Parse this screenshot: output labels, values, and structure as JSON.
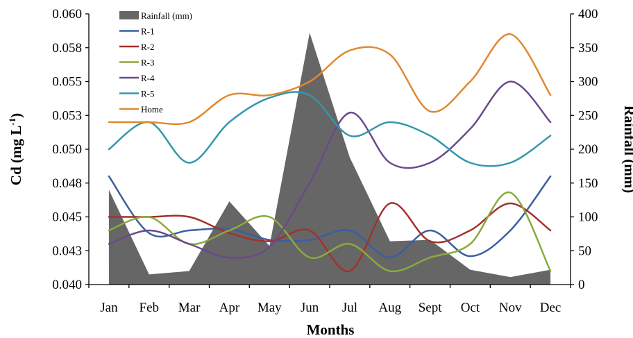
{
  "chart_data": {
    "type": "line",
    "x_label": "Months",
    "y_label_base": "Cd (mg  L",
    "y_label_sup": "-1",
    "y_label_close": ")",
    "y2_label": "Rainfall (mm)",
    "categories": [
      "Jan",
      "Feb",
      "Mar",
      "Apr",
      "May",
      "Jun",
      "Jul",
      "Aug",
      "Sept",
      "Oct",
      "Nov",
      "Dec"
    ],
    "ylim": [
      0.04,
      0.06
    ],
    "y_ticks": [
      "0.040",
      "0.043",
      "0.045",
      "0.048",
      "0.050",
      "0.053",
      "0.055",
      "0.058",
      "0.060"
    ],
    "y2lim": [
      0,
      400
    ],
    "y2_ticks": [
      "0",
      "50",
      "100",
      "150",
      "200",
      "250",
      "300",
      "350",
      "400"
    ],
    "legend_position": "top-left",
    "area_series": {
      "name": "Rainfall (mm)",
      "color": "#666666",
      "values": [
        140,
        15,
        20,
        123,
        57,
        372,
        188,
        64,
        66,
        22,
        11,
        22
      ]
    },
    "series": [
      {
        "name": "R-1",
        "color": "#3A5FA0",
        "values": [
          0.048,
          0.0438,
          0.044,
          0.0441,
          0.0433,
          0.0433,
          0.044,
          0.042,
          0.044,
          0.0421,
          0.044,
          0.048
        ]
      },
      {
        "name": "R-2",
        "color": "#A2312E",
        "values": [
          0.045,
          0.045,
          0.045,
          0.0438,
          0.0432,
          0.044,
          0.041,
          0.046,
          0.0432,
          0.044,
          0.046,
          0.044
        ]
      },
      {
        "name": "R-3",
        "color": "#8AAA3E",
        "values": [
          0.044,
          0.045,
          0.043,
          0.044,
          0.045,
          0.042,
          0.043,
          0.041,
          0.042,
          0.043,
          0.0468,
          0.041
        ]
      },
      {
        "name": "R-4",
        "color": "#6A4A8A",
        "values": [
          0.043,
          0.044,
          0.043,
          0.042,
          0.0428,
          0.0475,
          0.0527,
          0.049,
          0.049,
          0.0515,
          0.055,
          0.052
        ]
      },
      {
        "name": "R-5",
        "color": "#3397AB",
        "values": [
          0.05,
          0.052,
          0.049,
          0.052,
          0.0538,
          0.054,
          0.051,
          0.052,
          0.051,
          0.049,
          0.049,
          0.051
        ]
      },
      {
        "name": "Home",
        "color": "#E0882E",
        "values": [
          0.052,
          0.052,
          0.052,
          0.054,
          0.054,
          0.055,
          0.0573,
          0.057,
          0.0528,
          0.055,
          0.0585,
          0.054
        ]
      }
    ]
  }
}
